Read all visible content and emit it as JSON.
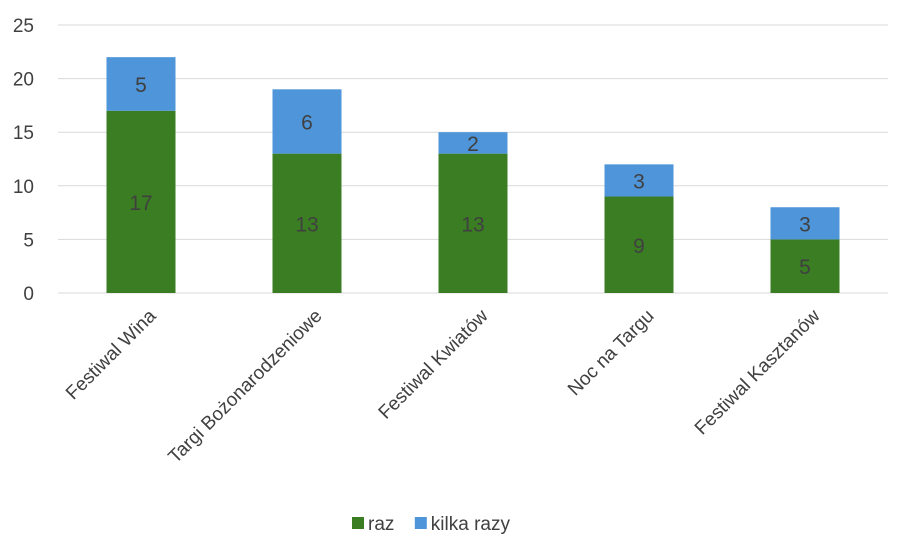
{
  "chart_data": {
    "type": "bar",
    "stacked": true,
    "categories": [
      "Festiwal Wina",
      "Targi Bożonarodzeniowe",
      "Festiwal Kwiatów",
      "Noc na Targu",
      "Festiwal Kasztanów"
    ],
    "series": [
      {
        "name": "raz",
        "values": [
          17,
          13,
          13,
          9,
          5
        ],
        "color": "#3a7d22"
      },
      {
        "name": "kilka razy",
        "values": [
          5,
          6,
          2,
          3,
          3
        ],
        "color": "#4e95d9"
      }
    ],
    "title": "",
    "xlabel": "",
    "ylabel": "",
    "ylim": [
      0,
      25
    ],
    "yticks": [
      0,
      5,
      10,
      15,
      20,
      25
    ],
    "grid": true,
    "legend": "bottom-center"
  }
}
